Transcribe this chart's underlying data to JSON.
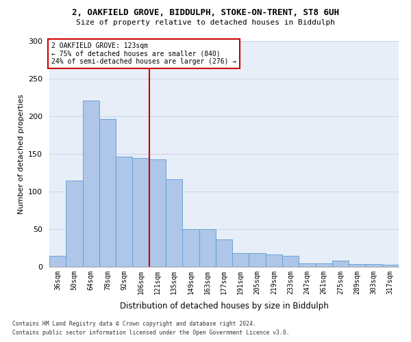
{
  "title1": "2, OAKFIELD GROVE, BIDDULPH, STOKE-ON-TRENT, ST8 6UH",
  "title2": "Size of property relative to detached houses in Biddulph",
  "xlabel": "Distribution of detached houses by size in Biddulph",
  "ylabel": "Number of detached properties",
  "categories": [
    "36sqm",
    "50sqm",
    "64sqm",
    "78sqm",
    "92sqm",
    "106sqm",
    "121sqm",
    "135sqm",
    "149sqm",
    "163sqm",
    "177sqm",
    "191sqm",
    "205sqm",
    "219sqm",
    "233sqm",
    "247sqm",
    "261sqm",
    "275sqm",
    "289sqm",
    "303sqm",
    "317sqm"
  ],
  "values": [
    15,
    115,
    221,
    196,
    146,
    145,
    143,
    116,
    50,
    50,
    36,
    18,
    18,
    16,
    15,
    5,
    5,
    8,
    4,
    4,
    3
  ],
  "bar_color": "#aec6e8",
  "bar_edge_color": "#5b9bd5",
  "vline_x": 6,
  "marker_label1": "2 OAKFIELD GROVE: 123sqm",
  "marker_label2": "← 75% of detached houses are smaller (840)",
  "marker_label3": "24% of semi-detached houses are larger (276) →",
  "annotation_box_color": "#ffffff",
  "annotation_box_edge": "#cc0000",
  "vline_color": "#cc0000",
  "grid_color": "#c8d8ec",
  "background_color": "#e8eef8",
  "footnote1": "Contains HM Land Registry data © Crown copyright and database right 2024.",
  "footnote2": "Contains public sector information licensed under the Open Government Licence v3.0.",
  "ylim": [
    0,
    300
  ],
  "yticks": [
    0,
    50,
    100,
    150,
    200,
    250,
    300
  ]
}
